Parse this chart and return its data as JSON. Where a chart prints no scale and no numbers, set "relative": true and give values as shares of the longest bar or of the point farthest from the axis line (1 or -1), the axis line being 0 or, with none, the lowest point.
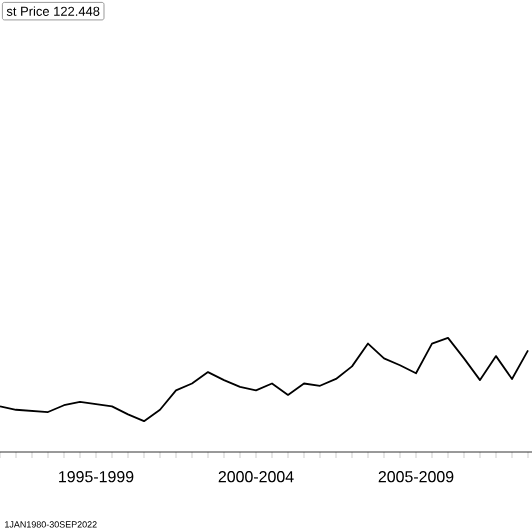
{
  "chart_data": {
    "type": "line",
    "relative": true,
    "annotations": [
      "st Price 122.448",
      "1JAN1980-30SEP2022"
    ],
    "categories": [
      null,
      null,
      null,
      null,
      null,
      null,
      "1995-1999",
      null,
      null,
      null,
      null,
      null,
      null,
      null,
      null,
      null,
      "2000-2004",
      null,
      null,
      null,
      null,
      null,
      null,
      null,
      null,
      null,
      "2005-2009",
      null,
      null,
      null,
      null,
      null,
      null,
      null
    ],
    "series": [
      {
        "color": "#000000",
        "values": [
          0.4,
          0.37,
          0.36,
          0.35,
          0.41,
          0.44,
          0.42,
          0.4,
          0.33,
          0.27,
          0.37,
          0.54,
          0.6,
          0.7,
          0.63,
          0.57,
          0.54,
          0.6,
          0.5,
          0.6,
          0.58,
          0.64,
          0.75,
          0.95,
          0.82,
          0.76,
          0.69,
          0.95,
          1,
          0.82,
          0.63,
          0.84,
          0.64,
          0.89
        ]
      }
    ]
  }
}
